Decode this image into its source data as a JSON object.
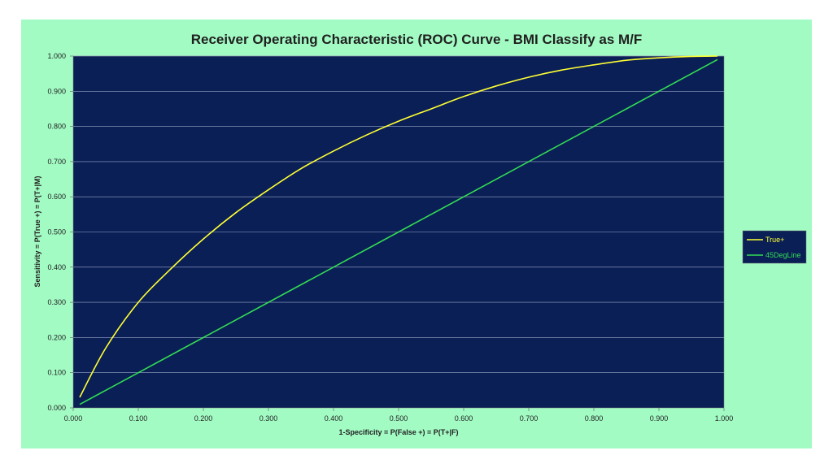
{
  "chart_data": {
    "type": "line",
    "title": "Receiver Operating Characteristic (ROC) Curve - BMI Classify as M/F",
    "xlabel": "1-Specificity = P(False +) = P(T+|F)",
    "ylabel": "Sensitivity = P(True +) = P(T+|M)",
    "xlim": [
      0,
      1
    ],
    "ylim": [
      0,
      1
    ],
    "xticks": [
      "0.000",
      "0.100",
      "0.200",
      "0.300",
      "0.400",
      "0.500",
      "0.600",
      "0.700",
      "0.800",
      "0.900",
      "1.000"
    ],
    "yticks": [
      "0.000",
      "0.100",
      "0.200",
      "0.300",
      "0.400",
      "0.500",
      "0.600",
      "0.700",
      "0.800",
      "0.900",
      "1.000"
    ],
    "grid": "horizontal",
    "legend_position": "right",
    "series": [
      {
        "name": "True+",
        "color": "#ffff33",
        "x": [
          0.01,
          0.05,
          0.1,
          0.15,
          0.2,
          0.25,
          0.3,
          0.35,
          0.4,
          0.45,
          0.5,
          0.55,
          0.6,
          0.65,
          0.7,
          0.75,
          0.8,
          0.85,
          0.9,
          0.95,
          0.99
        ],
        "y": [
          0.03,
          0.17,
          0.3,
          0.395,
          0.48,
          0.555,
          0.62,
          0.68,
          0.73,
          0.775,
          0.815,
          0.85,
          0.885,
          0.915,
          0.94,
          0.96,
          0.975,
          0.988,
          0.995,
          0.999,
          1.0
        ]
      },
      {
        "name": "45DegLine",
        "color": "#33dd55",
        "x": [
          0.01,
          0.99
        ],
        "y": [
          0.01,
          0.99
        ]
      }
    ]
  },
  "colors": {
    "plot_background": "#0a1f55",
    "outer_background": "#a3fbc4",
    "gridline": "#9aa7c8"
  }
}
